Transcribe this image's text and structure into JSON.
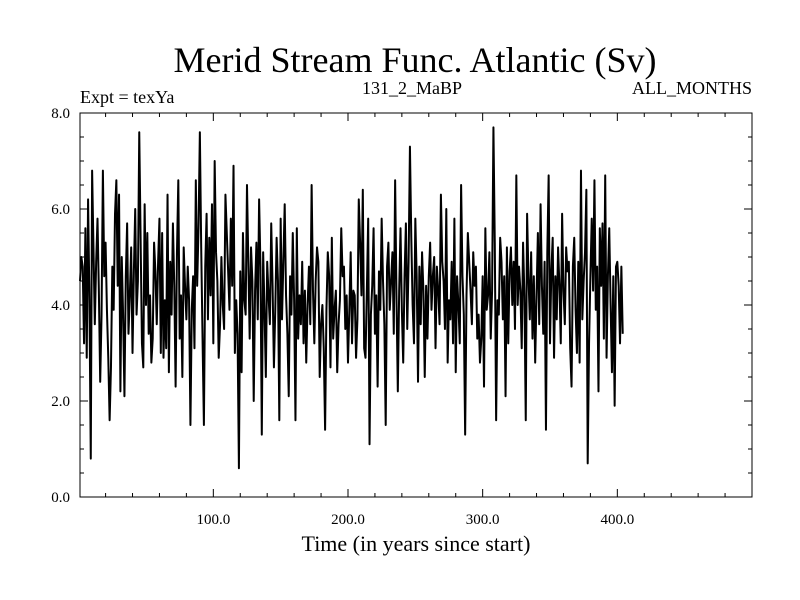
{
  "chart_data": {
    "type": "line",
    "title": "Merid Stream Func. Atlantic (Sv)",
    "subtitle_left": "Expt = texYa",
    "subtitle_center": "131_2_MaBP",
    "subtitle_right": "ALL_MONTHS",
    "xlabel": "Time (in years since start)",
    "ylabel": "",
    "xlim": [
      1,
      500
    ],
    "ylim": [
      0,
      8
    ],
    "x_ticks": [
      100,
      200,
      300,
      400
    ],
    "x_tick_labels": [
      "100.0",
      "200.0",
      "300.0",
      "400.0"
    ],
    "y_ticks": [
      0,
      2,
      4,
      6,
      8
    ],
    "y_tick_labels": [
      "0.0",
      "2.0",
      "4.0",
      "6.0",
      "8.0"
    ],
    "grid": false,
    "line_color": "#000000",
    "series": [
      {
        "x_start": 1,
        "x_step": 1,
        "values": [
          4.5,
          5.0,
          4.8,
          3.2,
          5.6,
          2.9,
          6.2,
          4.1,
          0.8,
          6.8,
          5.2,
          3.6,
          4.9,
          5.8,
          4.3,
          2.4,
          3.8,
          6.8,
          4.6,
          5.3,
          3.9,
          2.9,
          1.6,
          2.7,
          4.8,
          3.9,
          5.9,
          6.6,
          4.4,
          6.3,
          2.2,
          5.0,
          3.8,
          2.1,
          4.6,
          5.7,
          3.4,
          4.2,
          5.2,
          3.0,
          4.7,
          6.0,
          3.8,
          4.5,
          7.6,
          5.4,
          3.2,
          2.7,
          6.1,
          4.0,
          5.5,
          3.4,
          4.2,
          2.8,
          3.3,
          5.3,
          4.7,
          3.6,
          4.9,
          5.8,
          3.0,
          5.5,
          2.9,
          4.1,
          3.1,
          6.3,
          2.6,
          4.9,
          3.8,
          5.7,
          4.4,
          2.3,
          5.1,
          6.6,
          3.3,
          4.2,
          2.5,
          5.2,
          4.4,
          3.7,
          4.8,
          4.1,
          1.5,
          3.9,
          4.6,
          3.1,
          6.6,
          4.4,
          5.6,
          7.6,
          5.2,
          3.3,
          1.5,
          4.8,
          5.9,
          3.7,
          5.4,
          4.2,
          6.1,
          3.2,
          7.0,
          5.1,
          4.5,
          2.9,
          3.6,
          5.0,
          4.0,
          3.5,
          6.3,
          5.5,
          4.7,
          3.9,
          5.8,
          4.4,
          6.9,
          3.0,
          4.1,
          3.4,
          0.6,
          4.7,
          2.6,
          5.5,
          4.1,
          3.8,
          6.5,
          4.9,
          3.3,
          5.2,
          4.5,
          2.0,
          4.3,
          5.3,
          3.7,
          6.2,
          4.8,
          1.3,
          5.1,
          3.9,
          2.5,
          4.9,
          4.2,
          3.6,
          5.7,
          4.4,
          2.7,
          3.9,
          5.4,
          4.5,
          1.6,
          5.8,
          3.7,
          4.9,
          6.1,
          4.2,
          3.4,
          2.1,
          4.6,
          3.8,
          5.5,
          4.1,
          1.6,
          5.6,
          3.3,
          4.2,
          3.6,
          4.9,
          3.2,
          4.3,
          2.8,
          4.0,
          4.8,
          3.6,
          6.5,
          4.3,
          3.2,
          4.5,
          5.2,
          4.9,
          2.5,
          3.6,
          4.0,
          3.1,
          1.4,
          3.9,
          5.1,
          4.6,
          2.7,
          5.4,
          3.3,
          3.9,
          4.3,
          2.6,
          3.6,
          4.1,
          5.6,
          4.6,
          4.8,
          3.5,
          4.2,
          2.8,
          3.9,
          5.1,
          3.2,
          4.3,
          4.2,
          2.9,
          3.7,
          6.2,
          5.3,
          4.2,
          6.4,
          3.1,
          2.9,
          4.3,
          5.8,
          1.1,
          3.8,
          4.4,
          5.6,
          3.4,
          4.2,
          2.3,
          4.7,
          3.9,
          5.8,
          4.5,
          3.6,
          1.5,
          4.8,
          5.3,
          3.9,
          4.5,
          5.1,
          3.4,
          6.6,
          4.2,
          2.2,
          4.3,
          5.6,
          3.9,
          2.8,
          4.6,
          5.7,
          3.5,
          4.9,
          7.3,
          5.4,
          4.0,
          3.2,
          5.8,
          4.6,
          2.4,
          4.8,
          3.6,
          5.1,
          4.3,
          2.5,
          4.4,
          3.3,
          4.6,
          5.3,
          3.9,
          4.6,
          5.0,
          3.1,
          4.8,
          4.3,
          3.6,
          6.3,
          4.9,
          4.5,
          3.5,
          6.0,
          2.8,
          4.1,
          3.7,
          4.9,
          3.2,
          5.8,
          2.6,
          4.6,
          4.0,
          3.2,
          6.5,
          4.6,
          3.8,
          1.3,
          4.2,
          5.5,
          4.9,
          4.3,
          3.6,
          5.1,
          4.4,
          4.8,
          3.3,
          3.8,
          2.8,
          3.3,
          4.6,
          2.3,
          5.6,
          3.9,
          4.2,
          5.1,
          3.3,
          4.3,
          7.7,
          5.3,
          1.6,
          4.1,
          3.8,
          5.4,
          4.9,
          3.7,
          4.6,
          2.1,
          5.2,
          3.2,
          4.7,
          5.2,
          4.0,
          4.9,
          3.5,
          6.7,
          4.0,
          4.8,
          4.3,
          3.1,
          5.3,
          4.2,
          1.6,
          5.9,
          4.6,
          3.7,
          5.1,
          3.3,
          4.6,
          2.8,
          4.2,
          5.5,
          3.6,
          6.1,
          4.4,
          3.4,
          4.9,
          1.4,
          5.1,
          6.7,
          3.2,
          4.7,
          5.4,
          2.9,
          4.6,
          3.7,
          5.2,
          4.4,
          3.2,
          5.9,
          4.3,
          3.6,
          5.2,
          4.7,
          4.9,
          3.1,
          2.3,
          4.8,
          5.4,
          3.9,
          3.0,
          4.9,
          2.8,
          6.8,
          3.7,
          4.5,
          5.1,
          6.4,
          0.7,
          3.2,
          4.6,
          5.8,
          4.3,
          6.6,
          3.9,
          4.8,
          2.2,
          5.6,
          4.4,
          5.7,
          3.3,
          6.7,
          2.9,
          4.6,
          5.6,
          4.0,
          2.6,
          4.6,
          1.9,
          4.8,
          4.9,
          4.4,
          3.2,
          4.8,
          3.4
        ]
      }
    ]
  }
}
